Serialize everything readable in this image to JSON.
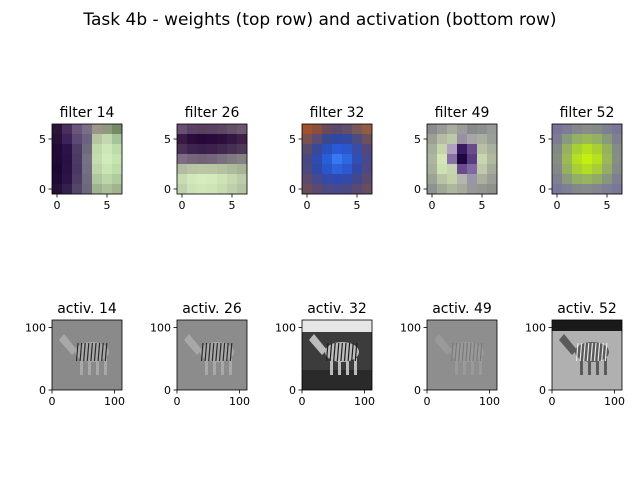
{
  "figure": {
    "title": "Task 4b - weights (top row) and activation (bottom row)"
  },
  "chart_data": [
    {
      "type": "heatmap",
      "title": "filter 14",
      "grid": [
        7,
        7
      ],
      "xticks": [
        0,
        5
      ],
      "yticks": [
        0,
        5
      ],
      "xlim": [
        -0.5,
        6.5
      ],
      "ylim": [
        6.5,
        -0.5
      ],
      "colors": [
        [
          "#2b1638",
          "#4a2f5e",
          "#6a5678",
          "#7a6f86",
          "#9b9689",
          "#8e9a7e",
          "#748a66"
        ],
        [
          "#26103a",
          "#3c245a",
          "#5c4a72",
          "#6c6282",
          "#b6c4a0",
          "#c4d8b0",
          "#a6c49a"
        ],
        [
          "#200a38",
          "#2c1248",
          "#4e3e66",
          "#6e6a80",
          "#c0d8aa",
          "#cfe6b8",
          "#bcdcaa"
        ],
        [
          "#1e0a36",
          "#2a1046",
          "#4c3a64",
          "#747284",
          "#c4dcae",
          "#d0ecbc",
          "#c6e4b2"
        ],
        [
          "#1c0834",
          "#2a1244",
          "#4a3862",
          "#727082",
          "#bcd4a8",
          "#cae4b4",
          "#bcdca8"
        ],
        [
          "#1e0a36",
          "#2c1446",
          "#4e3e64",
          "#706c80",
          "#b0c69e",
          "#bcd6a8",
          "#b0cc9e"
        ],
        [
          "#241038",
          "#34204c",
          "#54466a",
          "#6e687e",
          "#a0b290",
          "#aac09a",
          "#a0b490"
        ]
      ]
    },
    {
      "type": "heatmap",
      "title": "filter 26",
      "grid": [
        7,
        7
      ],
      "xticks": [
        0,
        5
      ],
      "yticks": [
        0,
        5
      ],
      "xlim": [
        -0.5,
        6.5
      ],
      "ylim": [
        6.5,
        -0.5
      ],
      "colors": [
        [
          "#6a5070",
          "#5c4066",
          "#58405e",
          "#5a4262",
          "#5e4664",
          "#645068",
          "#6c586e"
        ],
        [
          "#3a1a44",
          "#2c0c3a",
          "#280838",
          "#2a0a3a",
          "#2e0e3c",
          "#341644",
          "#3e2048"
        ],
        [
          "#4a3056",
          "#3e2450",
          "#3a204c",
          "#3c224c",
          "#40284e",
          "#463054",
          "#4e3858"
        ],
        [
          "#7c6c84",
          "#76667c",
          "#726278",
          "#74667a",
          "#78707e",
          "#7e7a82",
          "#848284"
        ],
        [
          "#b2bca0",
          "#b8c4a4",
          "#b8c8a4",
          "#b8c6a2",
          "#b4c2a0",
          "#aeba9c",
          "#a8b298"
        ],
        [
          "#c8dcb2",
          "#d2e8bc",
          "#d6ecbe",
          "#d4eabc",
          "#cee2b6",
          "#c6d8b0",
          "#bcccaa"
        ],
        [
          "#c0d2ac",
          "#cce2b6",
          "#d0e6ba",
          "#cee4b8",
          "#c8dcb2",
          "#bed0aa",
          "#b4c4a2"
        ]
      ]
    },
    {
      "type": "heatmap",
      "title": "filter 32",
      "grid": [
        7,
        7
      ],
      "xticks": [
        0,
        5
      ],
      "yticks": [
        0,
        5
      ],
      "xlim": [
        -0.5,
        6.5
      ],
      "ylim": [
        6.5,
        -0.5
      ],
      "colors": [
        [
          "#a0522d",
          "#8a4e3a",
          "#6a4a5a",
          "#5c4a6a",
          "#62506a",
          "#7a5858",
          "#925c44"
        ],
        [
          "#7a5050",
          "#5a4c72",
          "#3a4890",
          "#2e48a4",
          "#3448a0",
          "#4c4c82",
          "#6c5060"
        ],
        [
          "#5a4a6c",
          "#3a4898",
          "#2a50c0",
          "#2a5ad8",
          "#2c56cc",
          "#3a4ca4",
          "#54487a"
        ],
        [
          "#4a4880",
          "#2e4cae",
          "#2a5ed8",
          "#3a78f0",
          "#2e68e0",
          "#304eb4",
          "#4a4888"
        ],
        [
          "#4c4880",
          "#3048aa",
          "#2a56cc",
          "#2e62dc",
          "#2c58d0",
          "#3448a8",
          "#504882"
        ],
        [
          "#5c4a6a",
          "#444a8c",
          "#344aa8",
          "#3048b0",
          "#344aaa",
          "#42488e",
          "#5a4a70"
        ],
        [
          "#6a4c5c",
          "#5a4a70",
          "#4c4a84",
          "#48488a",
          "#4c4884",
          "#584a72",
          "#684c60"
        ]
      ]
    },
    {
      "type": "heatmap",
      "title": "filter 49",
      "grid": [
        7,
        7
      ],
      "xticks": [
        0,
        5
      ],
      "yticks": [
        0,
        5
      ],
      "xlim": [
        -0.5,
        6.5
      ],
      "ylim": [
        6.5,
        -0.5
      ],
      "colors": [
        [
          "#8a8c8e",
          "#9a9a96",
          "#a8ae9e",
          "#9a9c98",
          "#888a8e",
          "#8c9090",
          "#969a94"
        ],
        [
          "#9ca094",
          "#b4bca4",
          "#bcc8a8",
          "#9a90a4",
          "#a8a4a8",
          "#a8b0a0",
          "#9aa096"
        ],
        [
          "#a6ae9c",
          "#c4d4ac",
          "#b0a0c0",
          "#3a1a60",
          "#6a4c8c",
          "#b8c0a8",
          "#a8b09e"
        ],
        [
          "#acb69e",
          "#d4e6b4",
          "#8a70a8",
          "#1e0640",
          "#5a3c80",
          "#c8d6b0",
          "#b0b8a0"
        ],
        [
          "#a8b09c",
          "#cce0b0",
          "#c6d4b4",
          "#6a4c8e",
          "#8068a0",
          "#c0c8ac",
          "#a6ac9c"
        ],
        [
          "#9ca296",
          "#b8c4a4",
          "#c4d2aa",
          "#b4b4b0",
          "#9c94a8",
          "#aab09e",
          "#9a9e96"
        ],
        [
          "#8e9290",
          "#a2a898",
          "#aeb69e",
          "#a8aa9e",
          "#989898",
          "#92968e",
          "#8e908c"
        ]
      ]
    },
    {
      "type": "heatmap",
      "title": "filter 52",
      "grid": [
        7,
        7
      ],
      "xticks": [
        0,
        5
      ],
      "yticks": [
        0,
        5
      ],
      "xlim": [
        -0.5,
        6.5
      ],
      "ylim": [
        6.5,
        -0.5
      ],
      "colors": [
        [
          "#7a7298",
          "#7c7c94",
          "#84868e",
          "#888c8a",
          "#848a8a",
          "#7c8090",
          "#787896"
        ],
        [
          "#7c7c92",
          "#889a7c",
          "#94b064",
          "#9ab85a",
          "#94b064",
          "#889a78",
          "#7e8090"
        ],
        [
          "#828a88",
          "#96b260",
          "#a8d034",
          "#b4e020",
          "#a8d034",
          "#96b05e",
          "#848c86"
        ],
        [
          "#868e84",
          "#9cba54",
          "#b4e020",
          "#c4f010",
          "#b4e020",
          "#9cb856",
          "#868e84"
        ],
        [
          "#84888a",
          "#96b062",
          "#a8ce36",
          "#b2dc26",
          "#a8cc38",
          "#94ac66",
          "#848a88"
        ],
        [
          "#7e8090",
          "#8a9a7a",
          "#94ae66",
          "#98b45e",
          "#92aa68",
          "#88967e",
          "#7e8090"
        ],
        [
          "#7a789a",
          "#7e7e94",
          "#84888c",
          "#868a8a",
          "#84868e",
          "#7e7e94",
          "#7a7698"
        ]
      ]
    },
    {
      "type": "heatmap",
      "title": "activ. 14",
      "xticks": [
        0,
        100
      ],
      "yticks": [
        0,
        100
      ],
      "xlim": [
        0,
        112
      ],
      "ylim": [
        112,
        0
      ],
      "tone": "gray-mid",
      "base": "#8a8a8a",
      "subject": "zebra"
    },
    {
      "type": "heatmap",
      "title": "activ. 26",
      "xticks": [
        0,
        100
      ],
      "yticks": [
        0,
        100
      ],
      "xlim": [
        0,
        112
      ],
      "ylim": [
        112,
        0
      ],
      "tone": "gray-mid",
      "base": "#8c8c8c",
      "subject": "zebra"
    },
    {
      "type": "heatmap",
      "title": "activ. 32",
      "xticks": [
        0,
        100
      ],
      "yticks": [
        0,
        100
      ],
      "xlim": [
        0,
        112
      ],
      "ylim": [
        112,
        0
      ],
      "tone": "gray-dark",
      "base": "#3c3c3c",
      "subject": "zebra"
    },
    {
      "type": "heatmap",
      "title": "activ. 49",
      "xticks": [
        0,
        100
      ],
      "yticks": [
        0,
        100
      ],
      "xlim": [
        0,
        112
      ],
      "ylim": [
        112,
        0
      ],
      "tone": "gray-flat",
      "base": "#8e8e8e",
      "subject": "zebra"
    },
    {
      "type": "heatmap",
      "title": "activ. 52",
      "xticks": [
        0,
        100
      ],
      "yticks": [
        0,
        100
      ],
      "xlim": [
        0,
        112
      ],
      "ylim": [
        112,
        0
      ],
      "tone": "gray-light",
      "base": "#9a9a9a",
      "subject": "zebra"
    }
  ]
}
